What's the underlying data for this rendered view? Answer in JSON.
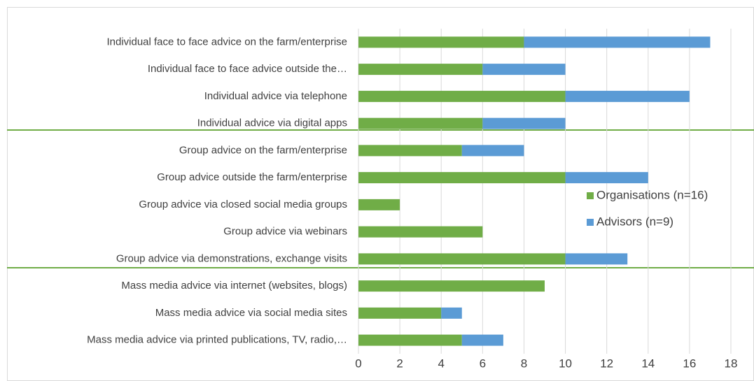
{
  "chart_data": {
    "type": "stacked-bar-horizontal",
    "categories": [
      "Individual face to face advice on the farm/enterprise",
      "Individual face to face advice outside the…",
      "Individual advice via telephone",
      "Individual advice via digital apps",
      "Group advice on the farm/enterprise",
      "Group advice outside the farm/enterprise",
      "Group advice via closed social media groups",
      "Group advice via webinars",
      "Group advice via demonstrations, exchange visits",
      "Mass media advice via internet (websites, blogs)",
      "Mass media advice via social media sites",
      "Mass media advice via printed publications, TV, radio,…"
    ],
    "series": [
      {
        "name": "Organisations (n=16)",
        "color": "#70ad47",
        "values": [
          8,
          6,
          10,
          6,
          5,
          10,
          2,
          6,
          10,
          9,
          4,
          5
        ]
      },
      {
        "name": "Advisors (n=9)",
        "color": "#5b9bd5",
        "values": [
          9,
          4,
          6,
          4,
          3,
          4,
          0,
          0,
          3,
          0,
          1,
          2
        ]
      }
    ],
    "xlim": [
      0,
      18
    ],
    "xticks": [
      0,
      2,
      4,
      6,
      8,
      10,
      12,
      14,
      16,
      18
    ],
    "grid": true
  }
}
